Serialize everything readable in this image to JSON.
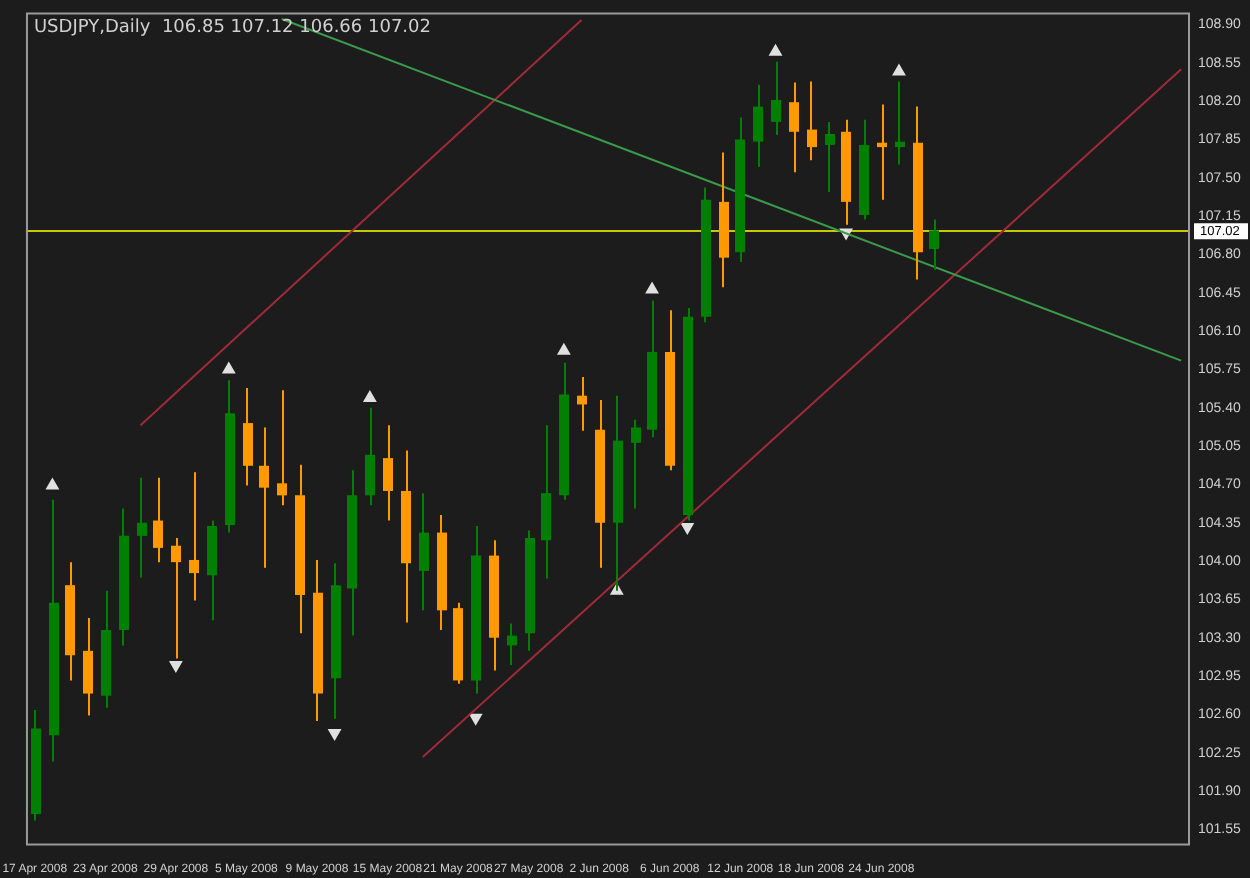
{
  "chart_data": {
    "type": "candlestick",
    "title": "USDJPY,Daily  106.85 107.12 106.66 107.02",
    "categories": [
      "17 Apr 2008",
      null,
      null,
      null,
      "23 Apr 2008",
      null,
      null,
      null,
      "29 Apr 2008",
      null,
      null,
      null,
      "5 May 2008",
      null,
      null,
      null,
      "9 May 2008",
      null,
      null,
      null,
      "15 May 2008",
      null,
      null,
      null,
      "21 May 2008",
      null,
      null,
      null,
      "27 May 2008",
      null,
      null,
      null,
      "2 Jun 2008",
      null,
      null,
      null,
      "6 Jun 2008",
      null,
      null,
      null,
      "12 Jun 2008",
      null,
      null,
      null,
      "18 Jun 2008",
      null,
      null,
      null,
      "24 Jun 2008",
      null,
      null,
      null,
      null,
      null,
      null,
      null,
      null,
      null,
      null,
      null,
      null,
      null,
      null,
      null,
      null,
      null
    ],
    "ohlc": [
      [
        101.69,
        102.64,
        101.63,
        102.47
      ],
      [
        102.41,
        104.56,
        102.17,
        103.62
      ],
      [
        103.78,
        103.99,
        102.91,
        103.14
      ],
      [
        103.18,
        103.48,
        102.59,
        102.79
      ],
      [
        102.77,
        103.73,
        102.66,
        103.37
      ],
      [
        103.37,
        104.48,
        103.23,
        104.23
      ],
      [
        104.23,
        104.76,
        103.85,
        104.35
      ],
      [
        104.37,
        104.76,
        103.99,
        104.12
      ],
      [
        104.14,
        104.21,
        103.11,
        103.99
      ],
      [
        104.01,
        104.81,
        103.64,
        103.89
      ],
      [
        103.87,
        104.37,
        103.46,
        104.32
      ],
      [
        104.33,
        105.65,
        104.26,
        105.35
      ],
      [
        105.26,
        105.58,
        104.69,
        104.87
      ],
      [
        104.87,
        105.22,
        103.94,
        104.67
      ],
      [
        104.71,
        105.56,
        104.51,
        104.6
      ],
      [
        104.6,
        104.88,
        103.34,
        103.69
      ],
      [
        103.71,
        104.01,
        102.54,
        102.79
      ],
      [
        102.93,
        103.98,
        102.56,
        103.78
      ],
      [
        103.75,
        104.83,
        103.32,
        104.6
      ],
      [
        104.6,
        105.4,
        104.51,
        104.97
      ],
      [
        104.94,
        105.24,
        104.37,
        104.64
      ],
      [
        104.64,
        105.01,
        103.44,
        103.98
      ],
      [
        103.91,
        104.62,
        103.55,
        104.26
      ],
      [
        104.26,
        104.42,
        103.37,
        103.55
      ],
      [
        103.57,
        103.62,
        102.88,
        102.91
      ],
      [
        102.91,
        104.32,
        102.79,
        104.05
      ],
      [
        104.05,
        104.19,
        103.0,
        103.3
      ],
      [
        103.23,
        103.43,
        103.05,
        103.32
      ],
      [
        103.34,
        104.28,
        103.18,
        104.21
      ],
      [
        104.19,
        105.24,
        103.84,
        104.62
      ],
      [
        104.6,
        105.81,
        104.56,
        105.52
      ],
      [
        105.51,
        105.68,
        105.19,
        105.43
      ],
      [
        105.2,
        105.47,
        103.94,
        104.35
      ],
      [
        104.35,
        105.51,
        103.73,
        105.1
      ],
      [
        105.08,
        105.29,
        104.48,
        105.22
      ],
      [
        105.2,
        106.38,
        105.13,
        105.91
      ],
      [
        105.91,
        106.29,
        104.83,
        104.87
      ],
      [
        104.42,
        106.31,
        104.37,
        106.23
      ],
      [
        106.23,
        107.41,
        106.18,
        107.3
      ],
      [
        107.28,
        107.73,
        106.5,
        106.77
      ],
      [
        106.82,
        108.05,
        106.73,
        107.85
      ],
      [
        107.83,
        108.35,
        107.6,
        108.15
      ],
      [
        108.01,
        108.56,
        107.89,
        108.21
      ],
      [
        108.19,
        108.37,
        107.55,
        107.92
      ],
      [
        107.94,
        108.38,
        107.66,
        107.78
      ],
      [
        107.8,
        108.01,
        107.37,
        107.9
      ],
      [
        107.92,
        108.03,
        107.07,
        107.28
      ],
      [
        107.16,
        108.03,
        107.12,
        107.8
      ],
      [
        107.82,
        108.17,
        107.3,
        107.78
      ],
      [
        107.78,
        108.38,
        107.62,
        107.83
      ],
      [
        107.82,
        108.15,
        106.57,
        106.82
      ],
      [
        106.85,
        107.12,
        106.66,
        107.02
      ],
      null,
      null,
      null,
      null,
      null,
      null,
      null,
      null,
      null,
      null,
      null,
      null,
      null,
      null
    ],
    "colors": [
      "#008000",
      "#008000",
      "#ff9900",
      "#ff9900",
      "#008000",
      "#008000",
      "#008000",
      "#ff9900",
      "#ff9900",
      "#ff9900",
      "#008000",
      "#008000",
      "#ff9900",
      "#ff9900",
      "#ff9900",
      "#ff9900",
      "#ff9900",
      "#008000",
      "#008000",
      "#008000",
      "#ff9900",
      "#ff9900",
      "#008000",
      "#ff9900",
      "#ff9900",
      "#008000",
      "#ff9900",
      "#008000",
      "#008000",
      "#008000",
      "#008000",
      "#ff9900",
      "#ff9900",
      "#008000",
      "#008000",
      "#008000",
      "#ff9900",
      "#008000",
      "#008000",
      "#ff9900",
      "#008000",
      "#008000",
      "#008000",
      "#ff9900",
      "#ff9900",
      "#008000",
      "#ff9900",
      "#008000",
      "#ff9900",
      "#008000",
      "#ff9900",
      "#008000",
      null,
      null,
      null,
      null,
      null,
      null,
      null,
      null,
      null,
      null,
      null,
      null,
      null,
      null
    ],
    "series": [
      {
        "type": "line",
        "color": "#3a9a4a",
        "values": [
          null,
          null,
          null,
          null,
          null,
          null,
          null,
          null,
          null,
          null,
          null,
          null,
          null,
          null,
          108.95,
          null,
          null,
          null,
          null,
          null,
          null,
          null,
          null,
          null,
          null,
          null,
          null,
          null,
          null,
          null,
          null,
          null,
          null,
          null,
          null,
          null,
          null,
          null,
          null,
          null,
          null,
          null,
          null,
          null,
          null,
          null,
          null,
          null,
          null,
          null,
          null,
          null,
          null,
          null,
          null,
          null,
          null,
          null,
          null,
          null,
          null,
          null,
          null,
          null,
          null,
          105.83
        ]
      },
      {
        "type": "line",
        "color": "#a02a3a",
        "values": [
          null,
          null,
          null,
          null,
          null,
          null,
          105.24,
          null,
          null,
          null,
          null,
          null,
          null,
          null,
          null,
          null,
          null,
          null,
          null,
          null,
          null,
          null,
          null,
          null,
          null,
          null,
          null,
          null,
          null,
          null,
          null,
          108.94,
          null,
          null,
          null,
          null,
          null,
          null,
          null,
          null,
          null,
          null,
          null,
          null,
          null,
          null,
          null,
          null,
          null,
          null,
          null,
          null,
          null,
          null,
          null,
          null,
          null,
          null,
          null,
          null,
          null,
          null,
          null,
          null,
          null,
          null
        ]
      },
      {
        "type": "line",
        "color": "#a02a3a",
        "values": [
          null,
          null,
          null,
          null,
          null,
          null,
          null,
          null,
          null,
          null,
          null,
          null,
          null,
          null,
          null,
          null,
          null,
          null,
          null,
          null,
          null,
          null,
          102.21,
          null,
          null,
          null,
          null,
          null,
          null,
          null,
          null,
          null,
          null,
          null,
          null,
          null,
          null,
          null,
          null,
          null,
          null,
          null,
          null,
          null,
          null,
          null,
          null,
          null,
          null,
          null,
          null,
          null,
          null,
          null,
          null,
          null,
          null,
          null,
          null,
          null,
          null,
          null,
          null,
          null,
          null,
          108.49
        ]
      },
      {
        "type": "scatter",
        "color": "#e0e0e0",
        "marker": "triangle",
        "values": [
          null,
          104.69,
          null,
          null,
          null,
          null,
          null,
          null,
          null,
          null,
          null,
          105.75,
          null,
          null,
          null,
          null,
          null,
          null,
          null,
          105.49,
          null,
          null,
          null,
          null,
          null,
          null,
          null,
          null,
          null,
          null,
          105.92,
          null,
          null,
          null,
          null,
          106.48,
          null,
          null,
          null,
          null,
          null,
          null,
          108.65,
          null,
          null,
          null,
          null,
          null,
          null,
          108.47,
          null,
          null,
          null,
          null,
          null,
          null,
          null,
          null,
          null,
          null,
          null,
          null,
          null,
          null,
          null,
          null
        ]
      },
      {
        "type": "scatter",
        "color": "#e0e0e0",
        "marker": "triangle",
        "values": [
          null,
          null,
          null,
          null,
          null,
          null,
          null,
          null,
          103.05,
          null,
          null,
          null,
          null,
          null,
          null,
          null,
          null,
          102.43,
          null,
          null,
          null,
          null,
          null,
          null,
          null,
          102.57,
          null,
          null,
          null,
          null,
          null,
          null,
          null,
          103.73,
          null,
          null,
          null,
          104.31,
          null,
          null,
          null,
          null,
          null,
          null,
          null,
          null,
          107.0,
          null,
          null,
          null,
          null,
          null,
          null,
          null,
          null,
          null,
          null,
          null,
          null,
          null,
          null,
          null,
          null,
          null,
          null,
          null
        ]
      }
    ],
    "ref_lines": [
      {
        "axis": "y",
        "value": 107.02,
        "label": "107.02",
        "color": "#c8c800"
      }
    ],
    "ylim": [
      101.42,
      109.01
    ],
    "yticks": [
      101.55,
      {
        "value": 101.9,
        "label": "101.90"
      },
      102.25,
      {
        "value": 102.6,
        "label": "102.60"
      },
      102.95,
      {
        "value": 103.3,
        "label": "103.30"
      },
      103.65,
      {
        "value": 104,
        "label": "104.00"
      },
      104.35,
      {
        "value": 104.7,
        "label": "104.70"
      },
      105.05,
      {
        "value": 105.4,
        "label": "105.40"
      },
      105.75,
      {
        "value": 106.1,
        "label": "106.10"
      },
      106.45,
      {
        "value": 106.8,
        "label": "106.80"
      },
      107.15,
      {
        "value": 107.5,
        "label": "107.50"
      },
      107.85,
      {
        "value": 108.2,
        "label": "108.20"
      },
      108.55,
      {
        "value": 108.9,
        "label": "108.90"
      }
    ],
    "grid": false,
    "legend": false
  }
}
